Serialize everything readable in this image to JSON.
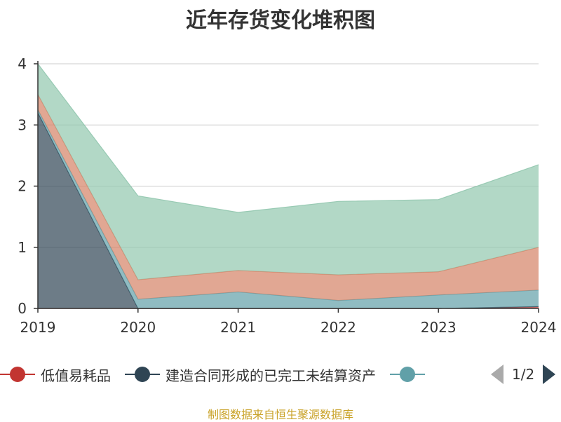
{
  "chart_data": {
    "type": "area",
    "stacked": true,
    "title": "近年存货变化堆积图",
    "x": [
      "2019",
      "2020",
      "2021",
      "2022",
      "2023",
      "2024"
    ],
    "ylim": [
      0,
      4
    ],
    "yticks": [
      "0",
      "1",
      "2",
      "3",
      "4"
    ],
    "grid": true,
    "legend_position": "bottom",
    "series": [
      {
        "name": "低值易耗品",
        "color": "#c23531",
        "values": [
          0,
          0,
          0,
          0,
          0,
          0.03
        ]
      },
      {
        "name": "建造合同形成的已完工未结算资产",
        "color": "#2f4554",
        "values": [
          3.2,
          0,
          0,
          0,
          0,
          0
        ]
      },
      {
        "name": "",
        "color": "#61a0a8",
        "values": [
          0.05,
          0.15,
          0.27,
          0.13,
          0.22,
          0.27
        ]
      },
      {
        "name": "",
        "color": "#d48265",
        "values": [
          0.25,
          0.32,
          0.35,
          0.42,
          0.38,
          0.7
        ]
      },
      {
        "name": "",
        "color": "#91c7ae",
        "values": [
          0.5,
          1.37,
          0.95,
          1.2,
          1.18,
          1.35
        ]
      }
    ]
  },
  "legend": {
    "items": [
      {
        "label": "低值易耗品",
        "color": "#c23531"
      },
      {
        "label": "建造合同形成的已完工未结算资产",
        "color": "#2f4554"
      },
      {
        "label": "",
        "color": "#61a0a8"
      }
    ],
    "page": "1/2"
  },
  "source": "制图数据来自恒生聚源数据库"
}
